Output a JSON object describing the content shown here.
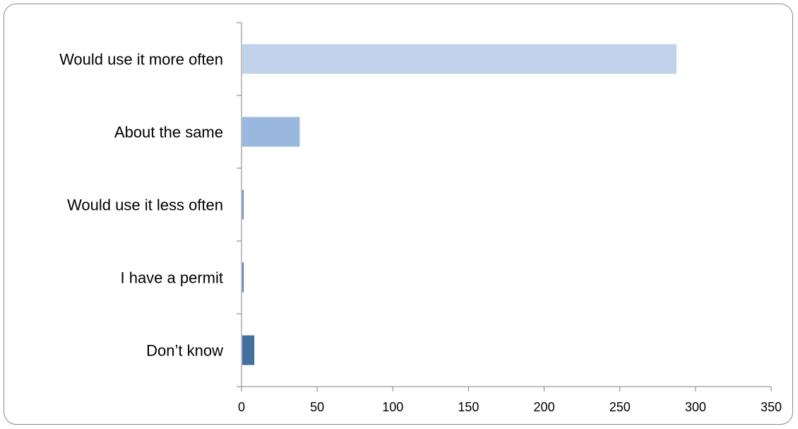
{
  "chart_data": {
    "type": "bar",
    "orientation": "horizontal",
    "title": "",
    "xlabel": "",
    "ylabel": "",
    "categories": [
      "Would use it more often",
      "About the same",
      "Would use it less often",
      "I have a permit",
      "Don’t know"
    ],
    "values": [
      287,
      38,
      1,
      1,
      8
    ],
    "colors": [
      "#c0d3ea",
      "#9ab8de",
      "#6e94c2",
      "#5a84b3",
      "#43709f"
    ],
    "xlim": [
      0,
      350
    ],
    "xticks": [
      0,
      50,
      100,
      150,
      200,
      250,
      300,
      350
    ],
    "grid": false,
    "legend": "none"
  }
}
